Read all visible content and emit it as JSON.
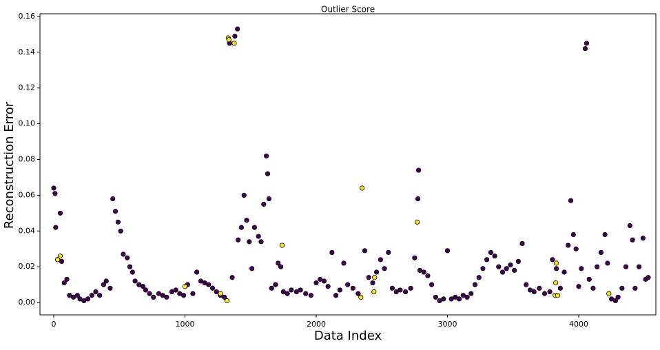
{
  "chart_data": {
    "type": "scatter",
    "title": "Outlier Score",
    "x_label": "Data Index",
    "y_label": "Reconstruction Error",
    "xlim": [
      -105,
      4588
    ],
    "ylim": [
      -0.0069,
      0.1615
    ],
    "xticks": [
      0,
      1000,
      2000,
      3000,
      4000
    ],
    "yticks": [
      {
        "value": 0,
        "label": "0.00"
      },
      0.02,
      0.04,
      0.06,
      0.08,
      {
        "value": 0.1,
        "label": "0.10"
      },
      0.12,
      0.14,
      0.16
    ],
    "grid": false,
    "series": [
      {
        "color": "#440154",
        "x": [
          0,
          10,
          15,
          30,
          50,
          60,
          80,
          100,
          120,
          150,
          180,
          200,
          230,
          260,
          290,
          320,
          350,
          380,
          400,
          430,
          450,
          470,
          490,
          510,
          530,
          560,
          580,
          600,
          620,
          650,
          680,
          700,
          730,
          760,
          800,
          830,
          860,
          900,
          930,
          960,
          990,
          1020,
          1060,
          1090,
          1120,
          1150,
          1180,
          1210,
          1240,
          1270,
          1300,
          1340,
          1380,
          1400,
          1360,
          1405,
          1430,
          1450,
          1470,
          1490,
          1510,
          1530,
          1560,
          1580,
          1600,
          1620,
          1630,
          1640,
          1660,
          1690,
          1710,
          1730,
          1750,
          1780,
          1810,
          1850,
          1880,
          1920,
          1960,
          2000,
          2030,
          2060,
          2090,
          2120,
          2150,
          2180,
          2210,
          2240,
          2280,
          2320,
          2370,
          2400,
          2430,
          2460,
          2490,
          2520,
          2550,
          2580,
          2610,
          2640,
          2680,
          2720,
          2750,
          2780,
          2775,
          2790,
          2820,
          2850,
          2880,
          2910,
          2940,
          2970,
          3000,
          3030,
          3060,
          3090,
          3120,
          3150,
          3180,
          3210,
          3240,
          3270,
          3300,
          3330,
          3360,
          3390,
          3420,
          3450,
          3480,
          3510,
          3540,
          3570,
          3600,
          3630,
          3660,
          3700,
          3740,
          3780,
          3800,
          3830,
          3860,
          3890,
          3920,
          3940,
          3960,
          3980,
          4000,
          4020,
          4050,
          4060,
          4080,
          4110,
          4140,
          4170,
          4200,
          4220,
          4250,
          4280,
          4300,
          4330,
          4360,
          4390,
          4410,
          4430,
          4460,
          4490,
          4510,
          4530
        ],
        "values": [
          0.064,
          0.061,
          0.042,
          0.024,
          0.05,
          0.023,
          0.011,
          0.013,
          0.004,
          0.003,
          0.004,
          0.002,
          0.001,
          0.002,
          0.004,
          0.006,
          0.004,
          0.01,
          0.012,
          0.008,
          0.058,
          0.051,
          0.045,
          0.04,
          0.027,
          0.025,
          0.02,
          0.017,
          0.012,
          0.01,
          0.009,
          0.007,
          0.005,
          0.003,
          0.005,
          0.004,
          0.003,
          0.006,
          0.007,
          0.005,
          0.004,
          0.01,
          0.005,
          0.017,
          0.012,
          0.011,
          0.01,
          0.008,
          0.006,
          0.004,
          0.003,
          0.145,
          0.149,
          0.153,
          0.014,
          0.035,
          0.042,
          0.06,
          0.046,
          0.034,
          0.019,
          0.042,
          0.037,
          0.034,
          0.055,
          0.082,
          0.072,
          0.058,
          0.008,
          0.01,
          0.022,
          0.02,
          0.006,
          0.005,
          0.007,
          0.006,
          0.007,
          0.005,
          0.004,
          0.011,
          0.013,
          0.012,
          0.009,
          0.028,
          0.004,
          0.007,
          0.022,
          0.01,
          0.008,
          0.005,
          0.029,
          0.014,
          0.011,
          0.017,
          0.024,
          0.019,
          0.028,
          0.008,
          0.006,
          0.007,
          0.006,
          0.008,
          0.025,
          0.074,
          0.058,
          0.018,
          0.017,
          0.015,
          0.01,
          0.003,
          0.001,
          0.002,
          0.029,
          0.002,
          0.003,
          0.002,
          0.004,
          0.003,
          0.005,
          0.01,
          0.014,
          0.019,
          0.024,
          0.028,
          0.026,
          0.02,
          0.017,
          0.019,
          0.021,
          0.018,
          0.023,
          0.033,
          0.01,
          0.007,
          0.006,
          0.008,
          0.005,
          0.006,
          0.024,
          0.019,
          0.008,
          0.017,
          0.032,
          0.057,
          0.038,
          0.03,
          0.009,
          0.019,
          0.142,
          0.145,
          0.013,
          0.008,
          0.02,
          0.028,
          0.038,
          0.022,
          0.002,
          0.001,
          0.003,
          0.008,
          0.02,
          0.043,
          0.035,
          0.008,
          0.02,
          0.036,
          0.013,
          0.014
        ]
      },
      {
        "color": "#fde725",
        "x": [
          30,
          50,
          1000,
          1270,
          1320,
          1330,
          1335,
          1375,
          1740,
          2340,
          2350,
          2440,
          2445,
          2770,
          3820,
          3830,
          3840,
          3825,
          4230
        ],
        "values": [
          0.024,
          0.026,
          0.009,
          0.005,
          0.001,
          0.148,
          0.147,
          0.145,
          0.032,
          0.003,
          0.064,
          0.006,
          0.014,
          0.045,
          0.004,
          0.022,
          0.004,
          0.011,
          0.005
        ]
      }
    ]
  }
}
